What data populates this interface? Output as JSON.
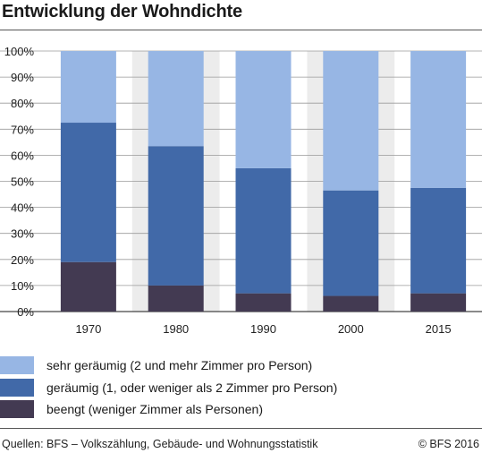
{
  "title": "Entwicklung der Wohndichte",
  "colors": {
    "sehr_geraeumig": "#97b6e4",
    "geraeumig": "#4169a8",
    "beengt": "#433a52",
    "background_band": "#ececec"
  },
  "chart_data": {
    "type": "bar",
    "stacked": true,
    "categories": [
      "1970",
      "1980",
      "1990",
      "2000",
      "2015"
    ],
    "ylim": [
      0,
      100
    ],
    "yticks": [
      "0%",
      "10%",
      "20%",
      "30%",
      "40%",
      "50%",
      "60%",
      "70%",
      "80%",
      "90%",
      "100%"
    ],
    "grid": true,
    "legend_position": "bottom",
    "series": [
      {
        "name": "beengt (weniger Zimmer als Personen)",
        "color": "#433a52",
        "values": [
          19,
          10,
          7,
          6,
          7
        ]
      },
      {
        "name": "geräumig (1, oder weniger als 2 Zimmer pro Person)",
        "color": "#4169a8",
        "values": [
          53.5,
          53.5,
          48,
          40.5,
          40.5
        ]
      },
      {
        "name": "sehr geräumig (2 und mehr Zimmer pro Person)",
        "color": "#97b6e4",
        "values": [
          27.5,
          36.5,
          45,
          53.5,
          52.5
        ]
      }
    ]
  },
  "legend": [
    {
      "label": "sehr geräumig (2 und mehr Zimmer pro Person)",
      "color": "#97b6e4"
    },
    {
      "label": "geräumig (1, oder weniger als 2 Zimmer pro Person)",
      "color": "#4169a8"
    },
    {
      "label": "beengt (weniger Zimmer als Personen)",
      "color": "#433a52"
    }
  ],
  "footer": {
    "source": "Quellen: BFS – Volkszählung, Gebäude- und Wohnungsstatistik",
    "copyright": "© BFS 2016"
  }
}
